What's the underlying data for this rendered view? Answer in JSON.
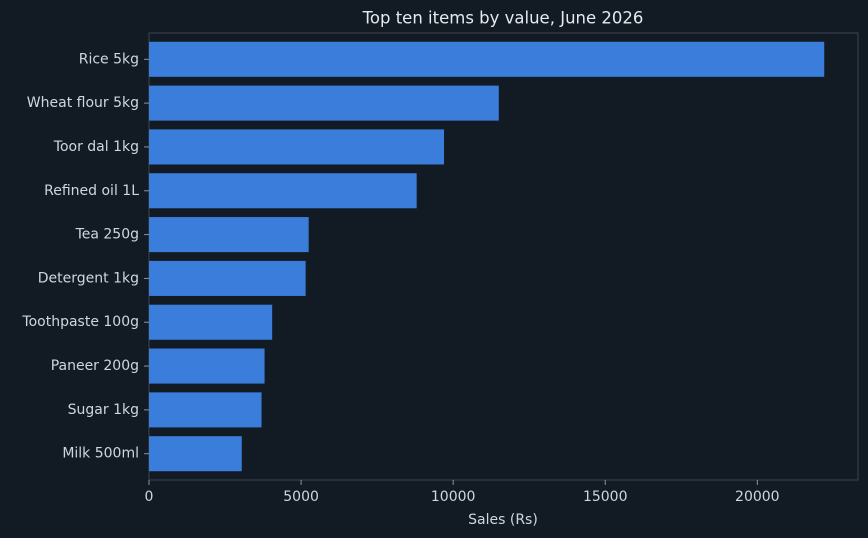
{
  "chart_data": {
    "type": "barh",
    "title": "Top ten items by value, June 2026",
    "xlabel": "Sales (Rs)",
    "categories": [
      "Rice 5kg",
      "Wheat flour 5kg",
      "Toor dal 1kg",
      "Refined oil 1L",
      "Tea 250g",
      "Detergent 1kg",
      "Toothpaste 100g",
      "Paneer 200g",
      "Sugar 1kg",
      "Milk 500ml"
    ],
    "values": [
      22200,
      11500,
      9700,
      8800,
      5250,
      5150,
      4050,
      3800,
      3700,
      3050
    ],
    "color": "#3a7dda",
    "xlim": [
      0,
      23310
    ],
    "xticks": [
      0,
      5000,
      10000,
      15000,
      20000
    ],
    "grid": false
  }
}
